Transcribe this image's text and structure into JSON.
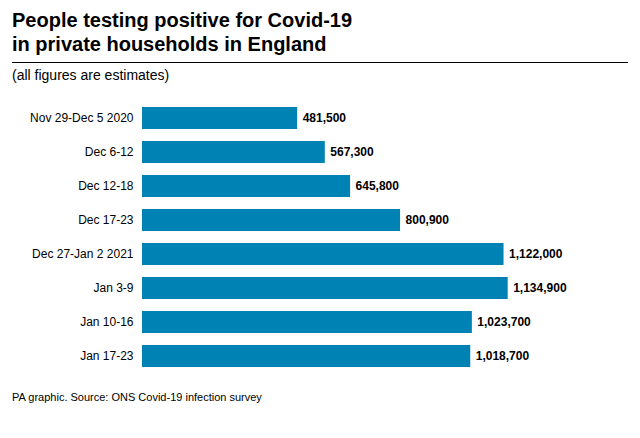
{
  "chart_data": {
    "type": "bar",
    "orientation": "horizontal",
    "title": "People testing positive for Covid-19\nin private households in England",
    "subtitle": "(all figures are estimates)",
    "footnote": "PA graphic. Source: ONS Covid-19 infection survey",
    "categories": [
      "Nov 29-Dec 5 2020",
      "Dec 6-12",
      "Dec 12-18",
      "Dec 17-23",
      "Dec 27-Jan 2 2021",
      "Jan 3-9",
      "Jan 10-16",
      "Jan 17-23"
    ],
    "values": [
      481500,
      567300,
      645800,
      800900,
      1122000,
      1134900,
      1023700,
      1018700
    ],
    "value_labels": [
      "481,500",
      "567,300",
      "645,800",
      "800,900",
      "1,122,000",
      "1,134,900",
      "1,023,700",
      "1,018,700"
    ],
    "color": "#0082b4",
    "xlim": [
      0,
      1260000
    ],
    "data_labels": true,
    "tick_labels": "y",
    "grid": false
  }
}
